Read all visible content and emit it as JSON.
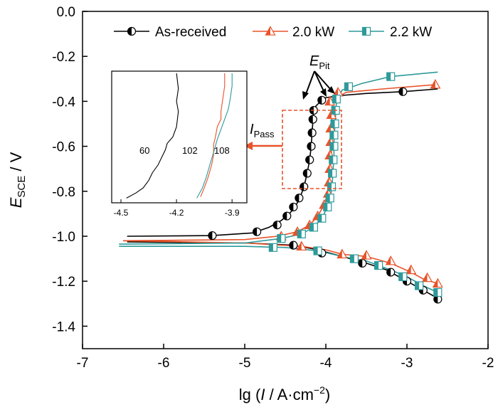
{
  "chart_data": {
    "type": "line",
    "x_axis": {
      "range": [
        -7,
        -2
      ],
      "ticks": [
        -7,
        -6,
        -5,
        -4,
        -3,
        -2
      ],
      "tick_labels": [
        "-7",
        "-6",
        "-5",
        "-4",
        "-3",
        "-2"
      ],
      "label_main": "lg (",
      "label_italic": "I",
      "label_unit": " / A·cm",
      "label_sup": "−2",
      "label_close": ")"
    },
    "y_axis": {
      "range": [
        -1.5,
        0.0
      ],
      "ticks": [
        0.0,
        -0.2,
        -0.4,
        -0.6,
        -0.8,
        -1.0,
        -1.2,
        -1.4
      ],
      "tick_labels": [
        "0.0",
        "-0.2",
        "-0.4",
        "-0.6",
        "-0.8",
        "-1.0",
        "-1.2",
        "-1.4"
      ],
      "label_main": "E",
      "label_sub": "SCE",
      "label_unit": " / V"
    },
    "grid": false,
    "legend": {
      "position": "top-right",
      "entries": [
        "As-received",
        "2.0 kW",
        "2.2 kW"
      ]
    },
    "series": [
      {
        "name": "As-received",
        "color": "#000000",
        "marker": "half-circle",
        "points": [
          [
            -6.45,
            -1.0
          ],
          [
            -5.4,
            -0.997
          ],
          [
            -4.9,
            -0.985
          ],
          [
            -4.7,
            -0.96
          ],
          [
            -4.55,
            -0.93
          ],
          [
            -4.45,
            -0.9
          ],
          [
            -4.38,
            -0.87
          ],
          [
            -4.32,
            -0.83
          ],
          [
            -4.27,
            -0.78
          ],
          [
            -4.23,
            -0.72
          ],
          [
            -4.2,
            -0.66
          ],
          [
            -4.18,
            -0.6
          ],
          [
            -4.17,
            -0.54
          ],
          [
            -4.16,
            -0.49
          ],
          [
            -4.15,
            -0.45
          ],
          [
            -4.12,
            -0.42
          ],
          [
            -4.02,
            -0.385
          ],
          [
            -3.85,
            -0.375
          ],
          [
            -3.5,
            -0.365
          ],
          [
            -3.05,
            -0.357
          ],
          [
            -2.62,
            -0.345
          ]
        ],
        "cathodic": [
          [
            -6.45,
            -1.025
          ],
          [
            -5.0,
            -1.03
          ],
          [
            -4.4,
            -1.04
          ],
          [
            -4.1,
            -1.06
          ],
          [
            -3.8,
            -1.09
          ],
          [
            -3.5,
            -1.12
          ],
          [
            -3.25,
            -1.15
          ],
          [
            -3.0,
            -1.2
          ],
          [
            -2.8,
            -1.24
          ],
          [
            -2.6,
            -1.28
          ]
        ],
        "marker_points": [
          [
            -5.4,
            -0.997
          ],
          [
            -4.85,
            -0.98
          ],
          [
            -4.6,
            -0.95
          ],
          [
            -4.48,
            -0.91
          ],
          [
            -4.4,
            -0.87
          ],
          [
            -4.33,
            -0.83
          ],
          [
            -4.27,
            -0.78
          ],
          [
            -4.23,
            -0.72
          ],
          [
            -4.2,
            -0.66
          ],
          [
            -4.18,
            -0.6
          ],
          [
            -4.17,
            -0.54
          ],
          [
            -4.16,
            -0.48
          ],
          [
            -4.15,
            -0.44
          ],
          [
            -4.05,
            -0.395
          ],
          [
            -3.05,
            -0.357
          ],
          [
            -4.4,
            -1.04
          ],
          [
            -4.05,
            -1.075
          ],
          [
            -3.55,
            -1.12
          ],
          [
            -3.2,
            -1.16
          ],
          [
            -3.0,
            -1.2
          ],
          [
            -2.8,
            -1.24
          ],
          [
            -2.62,
            -1.28
          ]
        ]
      },
      {
        "name": "2.0 kW",
        "color": "#e8532a",
        "marker": "half-triangle",
        "points": [
          [
            -6.5,
            -1.02
          ],
          [
            -5.0,
            -1.015
          ],
          [
            -4.6,
            -1.0
          ],
          [
            -4.35,
            -0.98
          ],
          [
            -4.2,
            -0.95
          ],
          [
            -4.1,
            -0.91
          ],
          [
            -4.02,
            -0.86
          ],
          [
            -3.97,
            -0.8
          ],
          [
            -3.95,
            -0.74
          ],
          [
            -3.94,
            -0.68
          ],
          [
            -3.93,
            -0.62
          ],
          [
            -3.93,
            -0.56
          ],
          [
            -3.93,
            -0.5
          ],
          [
            -3.92,
            -0.44
          ],
          [
            -3.9,
            -0.39
          ],
          [
            -3.75,
            -0.36
          ],
          [
            -3.3,
            -0.345
          ],
          [
            -2.62,
            -0.325
          ]
        ],
        "cathodic": [
          [
            -6.5,
            -1.02
          ],
          [
            -5.0,
            -1.03
          ],
          [
            -4.3,
            -1.045
          ],
          [
            -4.0,
            -1.06
          ],
          [
            -3.8,
            -1.08
          ],
          [
            -3.5,
            -1.09
          ],
          [
            -3.2,
            -1.12
          ],
          [
            -2.95,
            -1.16
          ],
          [
            -2.8,
            -1.19
          ],
          [
            -2.62,
            -1.21
          ]
        ],
        "marker_points": [
          [
            -4.55,
            -1.0
          ],
          [
            -4.35,
            -0.98
          ],
          [
            -4.2,
            -0.95
          ],
          [
            -4.1,
            -0.91
          ],
          [
            -4.02,
            -0.86
          ],
          [
            -3.97,
            -0.81
          ],
          [
            -3.96,
            -0.76
          ],
          [
            -3.95,
            -0.7
          ],
          [
            -3.95,
            -0.64
          ],
          [
            -3.94,
            -0.58
          ],
          [
            -3.94,
            -0.52
          ],
          [
            -3.93,
            -0.46
          ],
          [
            -3.95,
            -0.4
          ],
          [
            -3.85,
            -0.36
          ],
          [
            -2.65,
            -0.325
          ],
          [
            -4.3,
            -1.045
          ],
          [
            -3.8,
            -1.08
          ],
          [
            -3.5,
            -1.085
          ],
          [
            -3.2,
            -1.11
          ],
          [
            -2.95,
            -1.15
          ],
          [
            -2.75,
            -1.185
          ],
          [
            -2.62,
            -1.21
          ]
        ]
      },
      {
        "name": "2.2 kW",
        "color": "#2e9a9a",
        "marker": "half-square",
        "points": [
          [
            -6.55,
            -1.035
          ],
          [
            -5.0,
            -1.03
          ],
          [
            -4.55,
            -1.01
          ],
          [
            -4.3,
            -0.99
          ],
          [
            -4.15,
            -0.96
          ],
          [
            -4.05,
            -0.92
          ],
          [
            -3.98,
            -0.87
          ],
          [
            -3.94,
            -0.82
          ],
          [
            -3.92,
            -0.76
          ],
          [
            -3.91,
            -0.7
          ],
          [
            -3.9,
            -0.64
          ],
          [
            -3.9,
            -0.58
          ],
          [
            -3.89,
            -0.52
          ],
          [
            -3.88,
            -0.46
          ],
          [
            -3.87,
            -0.41
          ],
          [
            -3.8,
            -0.35
          ],
          [
            -3.55,
            -0.32
          ],
          [
            -3.2,
            -0.29
          ],
          [
            -2.62,
            -0.27
          ]
        ],
        "cathodic": [
          [
            -6.55,
            -1.045
          ],
          [
            -5.0,
            -1.045
          ],
          [
            -4.5,
            -1.05
          ],
          [
            -4.1,
            -1.065
          ],
          [
            -3.8,
            -1.09
          ],
          [
            -3.5,
            -1.11
          ],
          [
            -3.2,
            -1.15
          ],
          [
            -3.0,
            -1.18
          ],
          [
            -2.8,
            -1.22
          ],
          [
            -2.62,
            -1.25
          ]
        ],
        "marker_points": [
          [
            -4.55,
            -1.01
          ],
          [
            -4.3,
            -0.99
          ],
          [
            -4.15,
            -0.96
          ],
          [
            -4.05,
            -0.92
          ],
          [
            -3.98,
            -0.87
          ],
          [
            -3.95,
            -0.83
          ],
          [
            -3.93,
            -0.78
          ],
          [
            -3.92,
            -0.72
          ],
          [
            -3.91,
            -0.66
          ],
          [
            -3.9,
            -0.6
          ],
          [
            -3.9,
            -0.55
          ],
          [
            -3.89,
            -0.5
          ],
          [
            -3.88,
            -0.44
          ],
          [
            -3.87,
            -0.39
          ],
          [
            -3.72,
            -0.335
          ],
          [
            -3.2,
            -0.29
          ],
          [
            -4.65,
            -1.05
          ],
          [
            -4.1,
            -1.065
          ],
          [
            -3.65,
            -1.1
          ],
          [
            -3.35,
            -1.13
          ],
          [
            -3.05,
            -1.18
          ],
          [
            -2.85,
            -1.22
          ],
          [
            -2.62,
            -1.25
          ]
        ]
      }
    ],
    "annotations": {
      "e_pit_main": "E",
      "e_pit_sub": "Pit",
      "i_pass_main": "I",
      "i_pass_sub": "Pass"
    },
    "inset": {
      "x_ticks": [
        -4.5,
        -4.2,
        -3.9
      ],
      "x_tick_labels": [
        "-4.5",
        "-4.2",
        "-3.9"
      ],
      "x_range": [
        -4.55,
        -3.82
      ],
      "labels": [
        "60",
        "102",
        "108"
      ],
      "series": [
        {
          "color": "#000000",
          "points": [
            [
              -4.47,
              0.98
            ],
            [
              -4.42,
              0.94
            ],
            [
              -4.38,
              0.9
            ],
            [
              -4.35,
              0.84
            ],
            [
              -4.33,
              0.78
            ],
            [
              -4.3,
              0.72
            ],
            [
              -4.28,
              0.66
            ],
            [
              -4.26,
              0.6
            ],
            [
              -4.25,
              0.55
            ],
            [
              -4.22,
              0.5
            ],
            [
              -4.2,
              0.42
            ],
            [
              -4.19,
              0.3
            ],
            [
              -4.2,
              0.22
            ],
            [
              -4.19,
              0.12
            ],
            [
              -4.2,
              0.0
            ]
          ]
        },
        {
          "color": "#e8532a",
          "points": [
            [
              -4.07,
              0.97
            ],
            [
              -4.05,
              0.9
            ],
            [
              -4.03,
              0.82
            ],
            [
              -4.01,
              0.72
            ],
            [
              -4.0,
              0.64
            ],
            [
              -4.0,
              0.56
            ],
            [
              -3.99,
              0.5
            ],
            [
              -3.98,
              0.42
            ],
            [
              -3.96,
              0.36
            ],
            [
              -3.96,
              0.3
            ],
            [
              -3.95,
              0.2
            ],
            [
              -3.94,
              0.1
            ],
            [
              -3.94,
              0.0
            ]
          ]
        },
        {
          "color": "#2e9a9a",
          "points": [
            [
              -4.09,
              0.98
            ],
            [
              -4.06,
              0.9
            ],
            [
              -4.04,
              0.82
            ],
            [
              -4.02,
              0.72
            ],
            [
              -4.0,
              0.62
            ],
            [
              -3.98,
              0.52
            ],
            [
              -3.96,
              0.44
            ],
            [
              -3.94,
              0.36
            ],
            [
              -3.92,
              0.28
            ],
            [
              -3.91,
              0.2
            ],
            [
              -3.9,
              0.1
            ],
            [
              -3.9,
              0.0
            ]
          ]
        }
      ]
    }
  }
}
